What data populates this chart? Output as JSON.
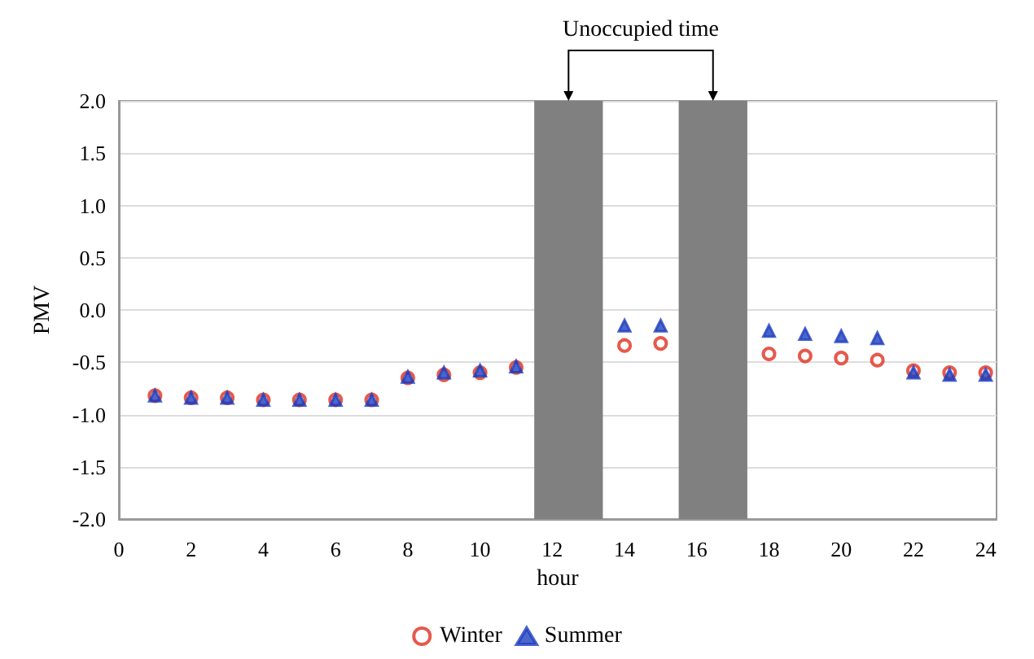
{
  "chart_data": {
    "type": "scatter",
    "xlabel": "hour",
    "ylabel": "PMV",
    "annotations": [
      "Unoccupied time"
    ],
    "x": [
      1,
      2,
      3,
      4,
      5,
      6,
      7,
      8,
      9,
      10,
      11,
      12,
      13,
      14,
      15,
      16,
      17,
      18,
      19,
      20,
      21,
      22,
      23,
      24
    ],
    "series": [
      {
        "name": "Winter",
        "color": "#e0301e",
        "marker": "circle",
        "values": [
          -0.82,
          -0.84,
          -0.84,
          -0.86,
          -0.86,
          -0.86,
          -0.86,
          -0.65,
          -0.62,
          -0.6,
          -0.55,
          null,
          null,
          -0.34,
          -0.32,
          null,
          null,
          -0.42,
          -0.44,
          -0.46,
          -0.48,
          -0.58,
          -0.6,
          -0.6
        ]
      },
      {
        "name": "Summer",
        "color": "#1f3fbf",
        "marker": "triangle",
        "values": [
          -0.82,
          -0.84,
          -0.84,
          -0.86,
          -0.86,
          -0.86,
          -0.86,
          -0.64,
          -0.6,
          -0.58,
          -0.54,
          null,
          null,
          -0.15,
          -0.15,
          null,
          null,
          -0.2,
          -0.23,
          -0.25,
          -0.27,
          -0.6,
          -0.62,
          -0.62
        ]
      }
    ],
    "bands": [
      {
        "axis": "x",
        "from": 11.5,
        "to": 13.4,
        "label": null,
        "color": "#808080"
      },
      {
        "axis": "x",
        "from": 15.5,
        "to": 17.4,
        "label": null,
        "color": "#808080"
      }
    ],
    "xlim": [
      0,
      24.3
    ],
    "xticks": [
      0,
      2,
      4,
      6,
      8,
      10,
      12,
      14,
      16,
      18,
      20,
      22,
      24
    ],
    "ylim": [
      -2,
      2
    ],
    "yticks": [
      {
        "value": -2,
        "label": "-2.0"
      },
      {
        "value": -1.5,
        "label": "-1.5"
      },
      {
        "value": -1,
        "label": "-1.0"
      },
      {
        "value": -0.5,
        "label": "-0.5"
      },
      {
        "value": 0,
        "label": "0.0"
      },
      {
        "value": 0.5,
        "label": "0.5"
      },
      {
        "value": 1,
        "label": "1.0"
      },
      {
        "value": 1.5,
        "label": "1.5"
      },
      {
        "value": 2,
        "label": "2.0"
      }
    ],
    "grid": "y",
    "legend": "bottom"
  }
}
